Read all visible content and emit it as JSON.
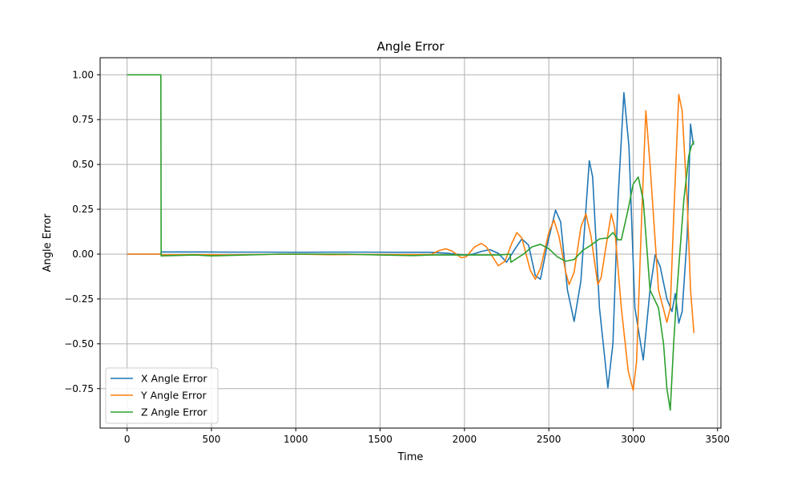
{
  "chart_data": {
    "type": "line",
    "title": "Angle Error",
    "xlabel": "Time",
    "ylabel": "Angle Error",
    "xlim": [
      -160,
      3520
    ],
    "ylim": [
      -0.97,
      1.095
    ],
    "xticks": [
      0,
      500,
      1000,
      1500,
      2000,
      2500,
      3000,
      3500
    ],
    "xtick_labels": [
      "0",
      "500",
      "1000",
      "1500",
      "2000",
      "2500",
      "3000",
      "3500"
    ],
    "yticks": [
      -0.75,
      -0.5,
      -0.25,
      0.0,
      0.25,
      0.5,
      0.75,
      1.0
    ],
    "ytick_labels": [
      "−0.75",
      "−0.50",
      "−0.25",
      "0.00",
      "0.25",
      "0.50",
      "0.75",
      "1.00"
    ],
    "grid": true,
    "legend_position": "lower-left",
    "series": [
      {
        "name": "X Angle Error",
        "color": "#1f77b4",
        "points": [
          [
            0,
            0
          ],
          [
            200,
            0
          ],
          [
            202,
            0.012
          ],
          [
            400,
            0.012
          ],
          [
            600,
            0.011
          ],
          [
            800,
            0.011
          ],
          [
            1000,
            0.01
          ],
          [
            1200,
            0.011
          ],
          [
            1400,
            0.011
          ],
          [
            1600,
            0.01
          ],
          [
            1800,
            0.01
          ],
          [
            1900,
            0.005
          ],
          [
            2000,
            -0.005
          ],
          [
            2050,
            0
          ],
          [
            2100,
            0.015
          ],
          [
            2150,
            0.025
          ],
          [
            2200,
            0.005
          ],
          [
            2250,
            -0.045
          ],
          [
            2300,
            0.03
          ],
          [
            2340,
            0.085
          ],
          [
            2380,
            0.05
          ],
          [
            2420,
            -0.12
          ],
          [
            2450,
            -0.14
          ],
          [
            2490,
            0.05
          ],
          [
            2540,
            0.245
          ],
          [
            2570,
            0.18
          ],
          [
            2610,
            -0.2
          ],
          [
            2650,
            -0.375
          ],
          [
            2690,
            -0.15
          ],
          [
            2740,
            0.52
          ],
          [
            2760,
            0.43
          ],
          [
            2800,
            -0.3
          ],
          [
            2850,
            -0.745
          ],
          [
            2880,
            -0.5
          ],
          [
            2910,
            0.3
          ],
          [
            2945,
            0.9
          ],
          [
            2975,
            0.6
          ],
          [
            3010,
            -0.3
          ],
          [
            3060,
            -0.59
          ],
          [
            3100,
            -0.2
          ],
          [
            3130,
            -0.005
          ],
          [
            3160,
            -0.07
          ],
          [
            3200,
            -0.25
          ],
          [
            3230,
            -0.32
          ],
          [
            3250,
            -0.22
          ],
          [
            3270,
            -0.385
          ],
          [
            3290,
            -0.32
          ],
          [
            3320,
            0.1
          ],
          [
            3340,
            0.725
          ],
          [
            3355,
            0.62
          ],
          [
            3360,
            0.61
          ]
        ]
      },
      {
        "name": "Y Angle Error",
        "color": "#ff7f0e",
        "points": [
          [
            0,
            0
          ],
          [
            200,
            0
          ],
          [
            202,
            -0.005
          ],
          [
            400,
            -0.003
          ],
          [
            600,
            -0.005
          ],
          [
            800,
            -0.002
          ],
          [
            1000,
            0
          ],
          [
            1200,
            -0.003
          ],
          [
            1400,
            -0.002
          ],
          [
            1600,
            -0.003
          ],
          [
            1800,
            -0.003
          ],
          [
            1850,
            0.02
          ],
          [
            1890,
            0.03
          ],
          [
            1930,
            0.015
          ],
          [
            1980,
            -0.02
          ],
          [
            2010,
            -0.015
          ],
          [
            2060,
            0.04
          ],
          [
            2100,
            0.06
          ],
          [
            2130,
            0.04
          ],
          [
            2200,
            -0.065
          ],
          [
            2240,
            -0.04
          ],
          [
            2280,
            0.06
          ],
          [
            2310,
            0.12
          ],
          [
            2340,
            0.09
          ],
          [
            2390,
            -0.09
          ],
          [
            2420,
            -0.14
          ],
          [
            2450,
            -0.08
          ],
          [
            2500,
            0.12
          ],
          [
            2530,
            0.19
          ],
          [
            2560,
            0.1
          ],
          [
            2600,
            -0.1
          ],
          [
            2620,
            -0.17
          ],
          [
            2650,
            -0.1
          ],
          [
            2690,
            0.15
          ],
          [
            2720,
            0.225
          ],
          [
            2750,
            0.1
          ],
          [
            2790,
            -0.17
          ],
          [
            2810,
            -0.13
          ],
          [
            2840,
            0.05
          ],
          [
            2870,
            0.225
          ],
          [
            2890,
            0.15
          ],
          [
            2930,
            -0.3
          ],
          [
            2970,
            -0.65
          ],
          [
            3000,
            -0.76
          ],
          [
            3020,
            -0.6
          ],
          [
            3050,
            0.2
          ],
          [
            3075,
            0.8
          ],
          [
            3100,
            0.5
          ],
          [
            3150,
            -0.2
          ],
          [
            3200,
            -0.38
          ],
          [
            3220,
            -0.3
          ],
          [
            3240,
            0.2
          ],
          [
            3270,
            0.89
          ],
          [
            3290,
            0.8
          ],
          [
            3320,
            0.3
          ],
          [
            3340,
            -0.2
          ],
          [
            3360,
            -0.44
          ]
        ]
      },
      {
        "name": "Z Angle Error",
        "color": "#2ca02c",
        "points": [
          [
            0,
            1
          ],
          [
            200,
            1
          ],
          [
            202,
            -0.01
          ],
          [
            400,
            -0.005
          ],
          [
            500,
            -0.01
          ],
          [
            700,
            -0.005
          ],
          [
            900,
            0
          ],
          [
            1100,
            0
          ],
          [
            1300,
            0
          ],
          [
            1500,
            -0.005
          ],
          [
            1700,
            -0.008
          ],
          [
            1800,
            -0.005
          ],
          [
            2000,
            -0.005
          ],
          [
            2200,
            -0.005
          ],
          [
            2270,
            0
          ],
          [
            2275,
            -0.045
          ],
          [
            2300,
            -0.03
          ],
          [
            2350,
            0
          ],
          [
            2400,
            0.04
          ],
          [
            2450,
            0.055
          ],
          [
            2500,
            0.03
          ],
          [
            2550,
            -0.015
          ],
          [
            2600,
            -0.04
          ],
          [
            2650,
            -0.03
          ],
          [
            2700,
            0.02
          ],
          [
            2750,
            0.05
          ],
          [
            2800,
            0.085
          ],
          [
            2850,
            0.09
          ],
          [
            2880,
            0.12
          ],
          [
            2910,
            0.08
          ],
          [
            2930,
            0.08
          ],
          [
            2970,
            0.25
          ],
          [
            3000,
            0.39
          ],
          [
            3030,
            0.43
          ],
          [
            3060,
            0.3
          ],
          [
            3100,
            -0.2
          ],
          [
            3150,
            -0.3
          ],
          [
            3180,
            -0.5
          ],
          [
            3200,
            -0.75
          ],
          [
            3220,
            -0.87
          ],
          [
            3240,
            -0.5
          ],
          [
            3260,
            -0.2
          ],
          [
            3300,
            0.3
          ],
          [
            3330,
            0.55
          ],
          [
            3345,
            0.6
          ],
          [
            3360,
            0.63
          ]
        ]
      }
    ]
  }
}
